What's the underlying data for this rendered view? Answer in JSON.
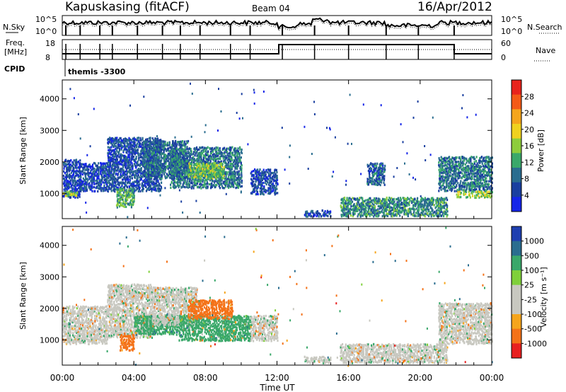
{
  "header": {
    "station": "Kapuskasing (fitACF)",
    "beam": "Beam 04",
    "date": "16/Apr/2012"
  },
  "top_panels": {
    "nsky_label": "N.Sky",
    "nsky_ticks": [
      "10^5",
      "10^0"
    ],
    "nsearch_ticks": [
      "10^5",
      "10^0"
    ],
    "nsearch_label": "N.Search",
    "freq_label": "Freq.",
    "freq_unit": "[MHz]",
    "freq_ticks": [
      "18",
      "8"
    ],
    "nave_ticks": [
      "60",
      "0"
    ],
    "nave_label": "Nave",
    "cpid_label": "CPID",
    "cpid_value": "themis -3300"
  },
  "chart_data": [
    {
      "type": "heatmap",
      "name": "power",
      "ylabel": "Slant Range [km]",
      "yticks": [
        "4000",
        "3000",
        "2000",
        "1000"
      ],
      "ylim": [
        200,
        4600
      ],
      "xlim": [
        0,
        24
      ],
      "colorbar": {
        "title": "Power [dB]",
        "labels": [
          "28",
          "24",
          "20",
          "16",
          "12",
          "8",
          "4"
        ],
        "colors": [
          "#e8231c",
          "#f45a17",
          "#f5a51c",
          "#f0d11e",
          "#8ecd3c",
          "#3aa86a",
          "#2a6d8f",
          "#1a3fa0",
          "#1525e8"
        ]
      },
      "regions": [
        {
          "t": [
            0.0,
            1.0
          ],
          "r": [
            900,
            2100
          ],
          "v": 6
        },
        {
          "t": [
            0.0,
            0.8
          ],
          "r": [
            950,
            1100
          ],
          "v": 18
        },
        {
          "t": [
            0.9,
            2.5
          ],
          "r": [
            1100,
            2000
          ],
          "v": 6
        },
        {
          "t": [
            2.5,
            5.5
          ],
          "r": [
            1100,
            2800
          ],
          "v": 7
        },
        {
          "t": [
            3.0,
            4.0
          ],
          "r": [
            600,
            1200
          ],
          "v": 15
        },
        {
          "t": [
            4.5,
            7.0
          ],
          "r": [
            1500,
            2700
          ],
          "v": 9
        },
        {
          "t": [
            6.0,
            10.0
          ],
          "r": [
            1200,
            2500
          ],
          "v": 10
        },
        {
          "t": [
            7.0,
            9.0
          ],
          "r": [
            1500,
            2000
          ],
          "v": 17
        },
        {
          "t": [
            10.5,
            12.0
          ],
          "r": [
            1000,
            1800
          ],
          "v": 7
        },
        {
          "t": [
            13.5,
            15.0
          ],
          "r": [
            300,
            500
          ],
          "v": 6
        },
        {
          "t": [
            15.5,
            21.5
          ],
          "r": [
            300,
            900
          ],
          "v": 12
        },
        {
          "t": [
            17.0,
            18.0
          ],
          "r": [
            1300,
            2000
          ],
          "v": 8
        },
        {
          "t": [
            21.0,
            24.0
          ],
          "r": [
            1100,
            2200
          ],
          "v": 10
        },
        {
          "t": [
            22.0,
            24.0
          ],
          "r": [
            900,
            1100
          ],
          "v": 18
        }
      ]
    },
    {
      "type": "heatmap",
      "name": "velocity",
      "ylabel": "Slant Range [km]",
      "yticks": [
        "4000",
        "3000",
        "2000",
        "1000"
      ],
      "ylim": [
        200,
        4600
      ],
      "xlim": [
        0,
        24
      ],
      "xlabel": "Time UT",
      "xticks": [
        "00:00",
        "04:00",
        "08:00",
        "12:00",
        "16:00",
        "20:00",
        "00:00"
      ],
      "colorbar": {
        "title": "Velocity [m s⁻¹]",
        "labels": [
          "1000",
          "500",
          "100",
          "25",
          "-25",
          "-100",
          "-500",
          "-1000"
        ],
        "colors": [
          "#1f3fb0",
          "#2a6d8f",
          "#3aa86a",
          "#7fd03a",
          "#c8c8c0",
          "#c8c8c0",
          "#f5a51c",
          "#f47218",
          "#e82020"
        ]
      },
      "regions": [
        {
          "t": [
            0.0,
            2.5
          ],
          "r": [
            900,
            2100
          ],
          "v": 0
        },
        {
          "t": [
            2.5,
            5.0
          ],
          "r": [
            1100,
            2800
          ],
          "v": 0
        },
        {
          "t": [
            3.2,
            4.0
          ],
          "r": [
            700,
            1200
          ],
          "v": -300
        },
        {
          "t": [
            4.0,
            6.5
          ],
          "r": [
            1200,
            1800
          ],
          "v": 150
        },
        {
          "t": [
            5.0,
            7.5
          ],
          "r": [
            1500,
            2700
          ],
          "v": 0
        },
        {
          "t": [
            6.5,
            10.5
          ],
          "r": [
            1000,
            1800
          ],
          "v": 80
        },
        {
          "t": [
            7.0,
            9.5
          ],
          "r": [
            1700,
            2300
          ],
          "v": -200
        },
        {
          "t": [
            10.5,
            12.0
          ],
          "r": [
            1000,
            1800
          ],
          "v": 0
        },
        {
          "t": [
            13.5,
            15.0
          ],
          "r": [
            300,
            500
          ],
          "v": 0
        },
        {
          "t": [
            15.5,
            21.5
          ],
          "r": [
            300,
            900
          ],
          "v": 0
        },
        {
          "t": [
            21.0,
            24.0
          ],
          "r": [
            900,
            2200
          ],
          "v": 0
        }
      ]
    }
  ]
}
